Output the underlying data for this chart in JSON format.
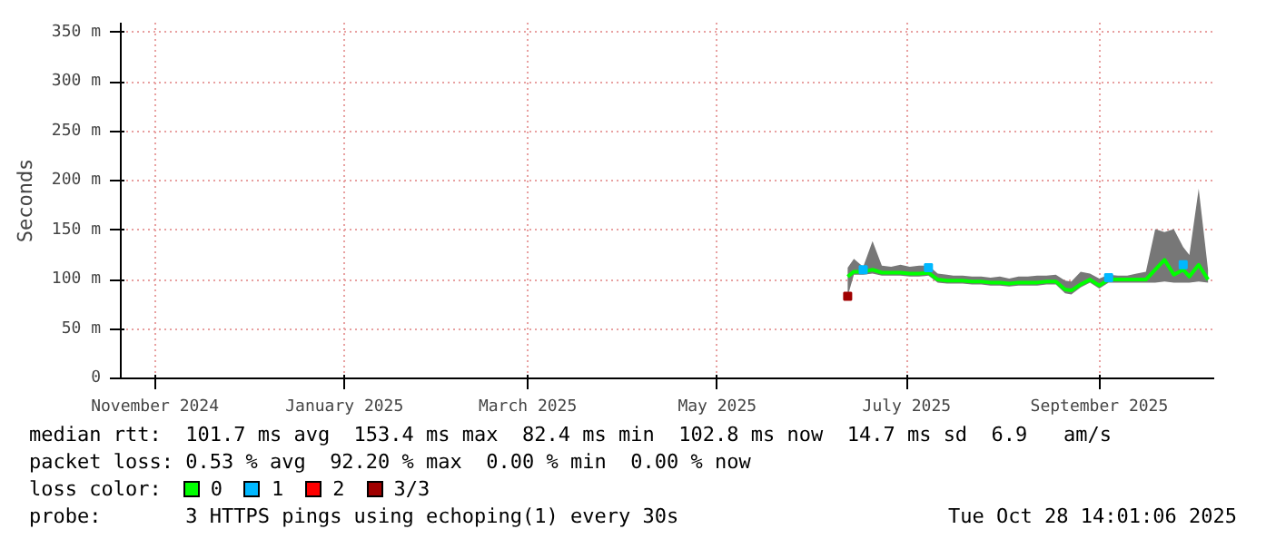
{
  "chart_data": {
    "type": "line",
    "ylabel": "Seconds",
    "legend_title": "loss color:",
    "legend": "bottom",
    "grid": true,
    "x": [
      "2025-06-26",
      "2025-06-28",
      "2025-07-01",
      "2025-07-04",
      "2025-07-07",
      "2025-07-10",
      "2025-07-13",
      "2025-07-16",
      "2025-07-19",
      "2025-07-22",
      "2025-07-25",
      "2025-07-28",
      "2025-07-30",
      "2025-08-02",
      "2025-08-05",
      "2025-08-08",
      "2025-08-11",
      "2025-08-14",
      "2025-08-17",
      "2025-08-20",
      "2025-08-23",
      "2025-08-26",
      "2025-08-29",
      "2025-09-01",
      "2025-09-04",
      "2025-09-06",
      "2025-09-09",
      "2025-09-12",
      "2025-09-15",
      "2025-09-18",
      "2025-09-21",
      "2025-09-24",
      "2025-09-27",
      "2025-09-30",
      "2025-10-03",
      "2025-10-06",
      "2025-10-09",
      "2025-10-12",
      "2025-10-14",
      "2025-10-17",
      "2025-10-20"
    ],
    "xlim": [
      "2024-11-04",
      "2025-10-22"
    ],
    "xticks": [
      {
        "value": "2024-11-15",
        "label": "November 2024"
      },
      {
        "value": "2025-01-15",
        "label": "January 2025"
      },
      {
        "value": "2025-03-15",
        "label": "March 2025"
      },
      {
        "value": "2025-05-15",
        "label": "May 2025"
      },
      {
        "value": "2025-07-15",
        "label": "July 2025"
      },
      {
        "value": "2025-09-15",
        "label": "September 2025"
      }
    ],
    "ylim": [
      0,
      360
    ],
    "yticks": [
      0,
      {
        "value": 50,
        "label": "50 m"
      },
      {
        "value": 100,
        "label": "100 m"
      },
      {
        "value": 150,
        "label": "150 m"
      },
      {
        "value": 200,
        "label": "200 m"
      },
      {
        "value": 250,
        "label": "250 m"
      },
      {
        "value": 300,
        "label": "300 m"
      },
      {
        "value": 350,
        "label": "350 m"
      }
    ],
    "series": [
      {
        "name": "0",
        "color": "#00ff00",
        "values": [
          103,
          108,
          108,
          110,
          107,
          107,
          107,
          106,
          106,
          107,
          100,
          99,
          99,
          99,
          98,
          98,
          97,
          97,
          96,
          97,
          97,
          97,
          98,
          98,
          90,
          89,
          95,
          100,
          94,
          100,
          100,
          100,
          100,
          100,
          110,
          120,
          105,
          110,
          103,
          115,
          100
        ],
        "upper": [
          112,
          121,
          113,
          139,
          114,
          113,
          115,
          113,
          114,
          114,
          106,
          105,
          104,
          104,
          103,
          103,
          102,
          103,
          101,
          103,
          103,
          104,
          104,
          105,
          99,
          98,
          108,
          106,
          101,
          105,
          104,
          104,
          106,
          108,
          151,
          148,
          151,
          133,
          125,
          192,
          110
        ],
        "lower": [
          83,
          105,
          105,
          106,
          104,
          104,
          104,
          103,
          103,
          104,
          97,
          96,
          96,
          96,
          95,
          95,
          94,
          94,
          93,
          94,
          94,
          94,
          95,
          95,
          86,
          85,
          92,
          97,
          91,
          97,
          97,
          97,
          97,
          97,
          97,
          98,
          97,
          97,
          97,
          98,
          97
        ]
      },
      {
        "name": "1",
        "type": "scatter",
        "color": "#00b8ff",
        "marker": "square",
        "x": [
          "2025-07-01",
          "2025-07-22",
          "2025-09-18",
          "2025-10-12"
        ],
        "values": [
          110,
          112,
          102,
          115
        ]
      },
      {
        "name": "2",
        "type": "scatter",
        "color": "#ff0000",
        "marker": "square",
        "values": [
          null,
          null,
          null,
          null,
          null,
          null,
          null,
          null,
          null,
          null,
          null,
          null,
          null,
          null,
          null,
          null,
          null,
          null,
          null,
          null,
          null,
          null,
          null,
          null,
          null,
          null,
          null,
          null,
          null,
          null,
          null,
          null,
          null,
          null,
          null,
          null,
          null,
          null,
          null,
          null,
          null
        ]
      },
      {
        "name": "3/3",
        "type": "scatter",
        "color": "#a00000",
        "marker": "square",
        "x": [
          "2025-06-26"
        ],
        "values": [
          83
        ]
      }
    ],
    "annotations": [
      "median rtt:  101.7 ms avg  153.4 ms max  82.4 ms min  102.8 ms now  14.7 ms sd  6.9   am/s",
      "packet loss: 0.53 % avg  92.20 % max  0.00 % min  0.00 % now",
      "probe:       3 HTTPS pings using echoping(1) every 30s",
      "Tue Oct 28 14:01:06 2025"
    ]
  }
}
